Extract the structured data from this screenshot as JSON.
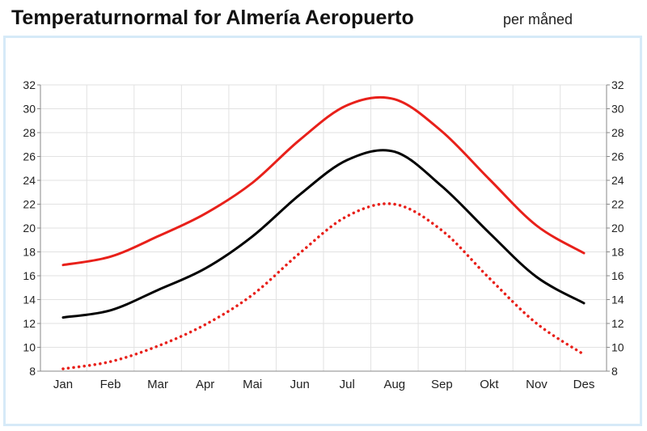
{
  "header": {
    "title": "Temperaturnormal for Almería  Aeropuerto",
    "subtitle": "per måned"
  },
  "colors": {
    "max": "#e8201a",
    "mean": "#000000",
    "min": "#e8201a",
    "grid": "#e2e2e2",
    "panel_border": "#d6eaf8"
  },
  "chart_data": {
    "type": "line",
    "title": "Temperaturnormal for Almería  Aeropuerto",
    "subtitle": "per måned",
    "categories": [
      "Jan",
      "Feb",
      "Mar",
      "Apr",
      "Mai",
      "Jun",
      "Jul",
      "Aug",
      "Sep",
      "Okt",
      "Nov",
      "Des"
    ],
    "ylim": [
      8,
      32
    ],
    "yticks": [
      8,
      10,
      12,
      14,
      16,
      18,
      20,
      22,
      24,
      26,
      28,
      30,
      32
    ],
    "grid": true,
    "axes": "left and right",
    "series": [
      {
        "key": "max",
        "style": "solid",
        "color": "#e8201a",
        "values": [
          16.9,
          17.6,
          19.3,
          21.2,
          23.8,
          27.4,
          30.3,
          30.8,
          28.1,
          24.1,
          20.2,
          17.9
        ]
      },
      {
        "key": "mean",
        "style": "solid",
        "color": "#000000",
        "values": [
          12.5,
          13.1,
          14.8,
          16.6,
          19.3,
          22.8,
          25.7,
          26.4,
          23.5,
          19.6,
          15.9,
          13.7
        ]
      },
      {
        "key": "min",
        "style": "dotted",
        "color": "#e8201a",
        "values": [
          8.2,
          8.8,
          10.1,
          11.9,
          14.4,
          17.9,
          21.0,
          22.0,
          19.8,
          15.8,
          12.0,
          9.4
        ]
      }
    ]
  }
}
